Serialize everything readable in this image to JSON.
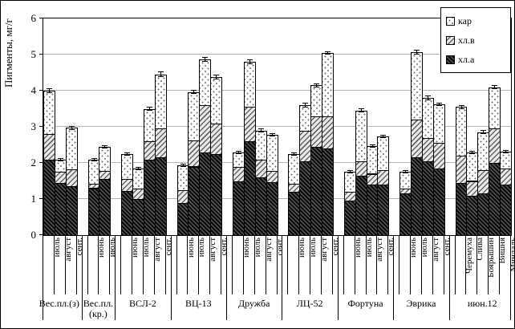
{
  "chart_data": {
    "type": "bar",
    "stacked": true,
    "ylabel": "Пигменты, мг/г",
    "ylim": [
      0,
      6
    ],
    "yticks": [
      6,
      5,
      4,
      3,
      2,
      1,
      0
    ],
    "grid": "horizontal",
    "legend_position": "top-right",
    "legend": [
      {
        "label": "кар",
        "pattern": "dotted-white"
      },
      {
        "label": "хл.в",
        "pattern": "light-diagonal-hatch"
      },
      {
        "label": "хл.а",
        "pattern": "dark-diagonal-hatch"
      }
    ],
    "stack_order_bottom_to_top": [
      "хл.а",
      "хл.в",
      "кар"
    ],
    "groups": [
      {
        "label": "Вес.пл.(з)",
        "bars": [
          {
            "label": "июль",
            "hl_a": 2.1,
            "hl_v": 0.7,
            "kar": 1.2,
            "err": 0.07
          },
          {
            "label": "август",
            "hl_a": 1.45,
            "hl_v": 0.3,
            "kar": 0.33,
            "err": 0.04
          },
          {
            "label": "сент.",
            "hl_a": 1.35,
            "hl_v": 0.47,
            "kar": 1.15,
            "err": 0.05
          }
        ]
      },
      {
        "label": "Вес.пл. (кр.)",
        "bars": [
          {
            "label": "июнь",
            "hl_a": 1.3,
            "hl_v": 0.12,
            "kar": 0.66,
            "err": 0.04
          },
          {
            "label": "июль",
            "hl_a": 1.55,
            "hl_v": 0.23,
            "kar": 0.67,
            "err": 0.04
          }
        ]
      },
      {
        "label": "ВСЛ-2",
        "bars": [
          {
            "label": "июнь",
            "hl_a": 1.22,
            "hl_v": 0.33,
            "kar": 0.7,
            "err": 0.05
          },
          {
            "label": "июль",
            "hl_a": 1.0,
            "hl_v": 0.3,
            "kar": 0.55,
            "err": 0.04
          },
          {
            "label": "август",
            "hl_a": 2.1,
            "hl_v": 0.5,
            "kar": 0.9,
            "err": 0.06
          },
          {
            "label": "сент.",
            "hl_a": 2.15,
            "hl_v": 0.8,
            "kar": 1.5,
            "err": 0.08
          }
        ]
      },
      {
        "label": "ВЦ-13",
        "bars": [
          {
            "label": "июнь",
            "hl_a": 0.9,
            "hl_v": 0.35,
            "kar": 0.68,
            "err": 0.04
          },
          {
            "label": "июль",
            "hl_a": 1.9,
            "hl_v": 0.72,
            "kar": 1.34,
            "err": 0.06
          },
          {
            "label": "август",
            "hl_a": 2.3,
            "hl_v": 1.3,
            "kar": 1.27,
            "err": 0.07
          },
          {
            "label": "сент.",
            "hl_a": 2.25,
            "hl_v": 0.83,
            "kar": 1.3,
            "err": 0.07
          }
        ]
      },
      {
        "label": "Дружба",
        "bars": [
          {
            "label": "июнь",
            "hl_a": 1.5,
            "hl_v": 0.4,
            "kar": 0.4,
            "err": 0.04
          },
          {
            "label": "июль",
            "hl_a": 2.6,
            "hl_v": 0.95,
            "kar": 1.25,
            "err": 0.06
          },
          {
            "label": "август",
            "hl_a": 1.6,
            "hl_v": 0.5,
            "kar": 0.8,
            "err": 0.05
          },
          {
            "label": "сент.",
            "hl_a": 1.47,
            "hl_v": 0.3,
            "kar": 1.01,
            "err": 0.05
          }
        ]
      },
      {
        "label": "ЛЦ-52",
        "bars": [
          {
            "label": "июнь",
            "hl_a": 1.2,
            "hl_v": 0.22,
            "kar": 0.83,
            "err": 0.05
          },
          {
            "label": "июль",
            "hl_a": 2.05,
            "hl_v": 0.85,
            "kar": 0.7,
            "err": 0.06
          },
          {
            "label": "август",
            "hl_a": 2.45,
            "hl_v": 0.85,
            "kar": 0.85,
            "err": 0.06
          },
          {
            "label": "сент.",
            "hl_a": 2.4,
            "hl_v": 0.9,
            "kar": 1.75,
            "err": 0.05
          }
        ]
      },
      {
        "label": "Фортуна",
        "bars": [
          {
            "label": "июнь",
            "hl_a": 0.95,
            "hl_v": 0.25,
            "kar": 0.55,
            "err": 0.04
          },
          {
            "label": "июль",
            "hl_a": 1.65,
            "hl_v": 0.4,
            "kar": 1.4,
            "err": 0.06
          },
          {
            "label": "август",
            "hl_a": 1.4,
            "hl_v": 0.3,
            "kar": 0.77,
            "err": 0.05
          },
          {
            "label": "сент.",
            "hl_a": 1.4,
            "hl_v": 0.4,
            "kar": 0.93,
            "err": 0.05
          }
        ]
      },
      {
        "label": "Эврика",
        "bars": [
          {
            "label": "июнь",
            "hl_a": 1.15,
            "hl_v": 0.15,
            "kar": 0.45,
            "err": 0.04
          },
          {
            "label": "июль",
            "hl_a": 2.15,
            "hl_v": 1.05,
            "kar": 1.87,
            "err": 0.07
          },
          {
            "label": "август",
            "hl_a": 2.05,
            "hl_v": 0.65,
            "kar": 1.1,
            "err": 0.06
          },
          {
            "label": "сент.",
            "hl_a": 1.85,
            "hl_v": 0.7,
            "kar": 1.07,
            "err": 0.05
          }
        ]
      },
      {
        "label": "июн.12",
        "bars": [
          {
            "label": "Черемуха",
            "hl_a": 1.45,
            "hl_v": 0.75,
            "kar": 1.35,
            "err": 0.05
          },
          {
            "label": "Слива",
            "hl_a": 1.1,
            "hl_v": 0.4,
            "kar": 0.78,
            "err": 0.04
          },
          {
            "label": "Боярышин",
            "hl_a": 1.15,
            "hl_v": 0.65,
            "kar": 1.05,
            "err": 0.06
          },
          {
            "label": "Вишня",
            "hl_a": 2.0,
            "hl_v": 0.95,
            "kar": 1.15,
            "err": 0.06
          },
          {
            "label": "Миндаль",
            "hl_a": 1.4,
            "hl_v": 0.45,
            "kar": 0.47,
            "err": 0.04
          }
        ]
      }
    ]
  }
}
